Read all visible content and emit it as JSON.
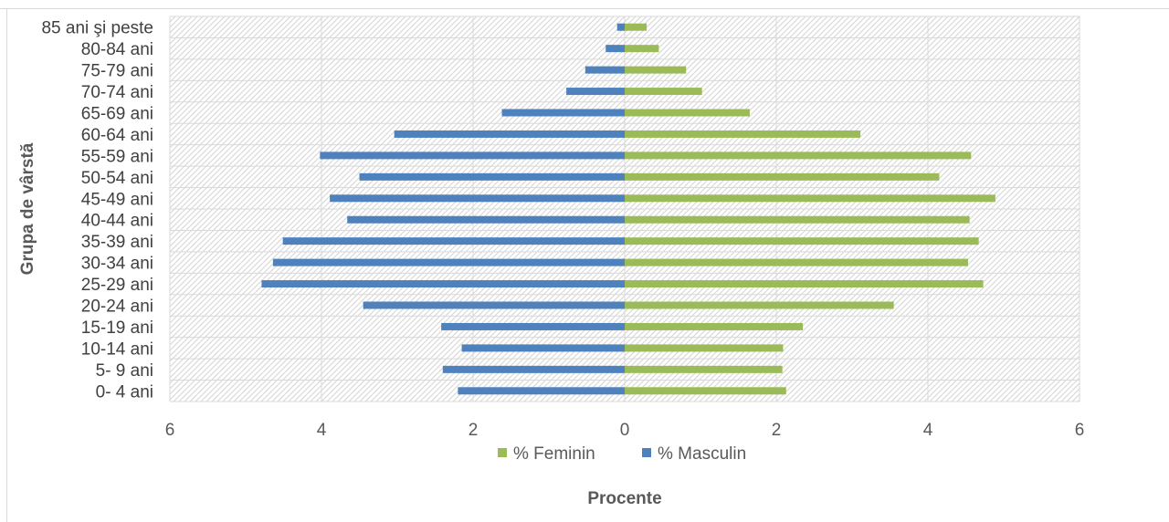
{
  "chart_data": {
    "type": "bar",
    "orientation": "horizontal",
    "xlabel": "Procente",
    "ylabel": "Grupa de vârstă",
    "xlim": [
      -6,
      6
    ],
    "x_ticks": [
      "6",
      "4",
      "2",
      "0",
      "2",
      "4",
      "6"
    ],
    "categories": [
      "0- 4 ani",
      "5- 9 ani",
      "10-14 ani",
      "15-19 ani",
      "20-24 ani",
      "25-29 ani",
      "30-34 ani",
      "35-39 ani",
      "40-44 ani",
      "45-49 ani",
      "50-54 ani",
      "55-59 ani",
      "60-64 ani",
      "65-69 ani",
      "70-74 ani",
      "75-79 ani",
      "80-84 ani",
      "85 ani şi peste"
    ],
    "series": [
      {
        "name": "% Feminin",
        "color": "#9bbb59",
        "values": [
          2.13,
          2.08,
          2.09,
          2.35,
          3.55,
          4.73,
          4.53,
          4.67,
          4.55,
          4.89,
          4.15,
          4.57,
          3.11,
          1.65,
          1.02,
          0.81,
          0.45,
          0.29
        ]
      },
      {
        "name": "% Masculin",
        "color": "#4f81bd",
        "values": [
          2.2,
          2.4,
          2.15,
          2.42,
          3.45,
          4.79,
          4.64,
          4.51,
          3.66,
          3.89,
          3.5,
          4.02,
          3.04,
          1.62,
          0.77,
          0.52,
          0.25,
          0.1
        ]
      }
    ],
    "grid": true,
    "legend_position": "bottom"
  }
}
